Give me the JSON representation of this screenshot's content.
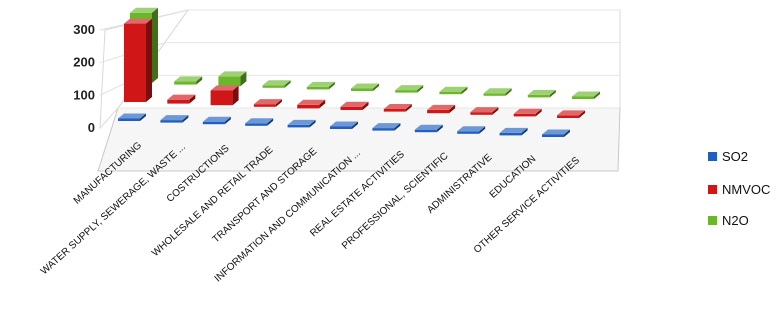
{
  "chart_data": {
    "type": "bar",
    "style": "3d-column",
    "title": "",
    "xlabel": "",
    "ylabel": "",
    "ylim": [
      0,
      300
    ],
    "yticks": [
      "0",
      "100",
      "200",
      "300"
    ],
    "grid": true,
    "legend_position": "right",
    "categories": [
      "MANUFACTURING",
      "WATER SUPPLY, SEWERAGE, WASTE ...",
      "COSTRUCTIONS",
      "WHOLESALE AND RETAIL TRADE",
      "TRANSPORT AND STORAGE",
      "INFORMATION AND COMMUNICATION ...",
      "REAL ESTATE ACTIVITIES",
      "PROFESSIONAL, SCIENTIFIC",
      "ADMINISTRATIVE",
      "EDUCATION",
      "OTHER SERVICE ACTIVITIES"
    ],
    "series": [
      {
        "name": "SO2",
        "color": "#1f5fbf",
        "values": [
          3,
          2,
          2,
          1,
          1,
          1,
          1,
          1,
          1,
          1,
          1
        ]
      },
      {
        "name": "NMVOC",
        "color": "#d01616",
        "values": [
          240,
          12,
          45,
          8,
          11,
          10,
          8,
          10,
          8,
          8,
          8
        ]
      },
      {
        "name": "N2O",
        "color": "#6ab82a",
        "values": [
          215,
          10,
          30,
          5,
          7,
          3,
          4,
          3,
          2,
          2,
          2
        ]
      }
    ]
  }
}
